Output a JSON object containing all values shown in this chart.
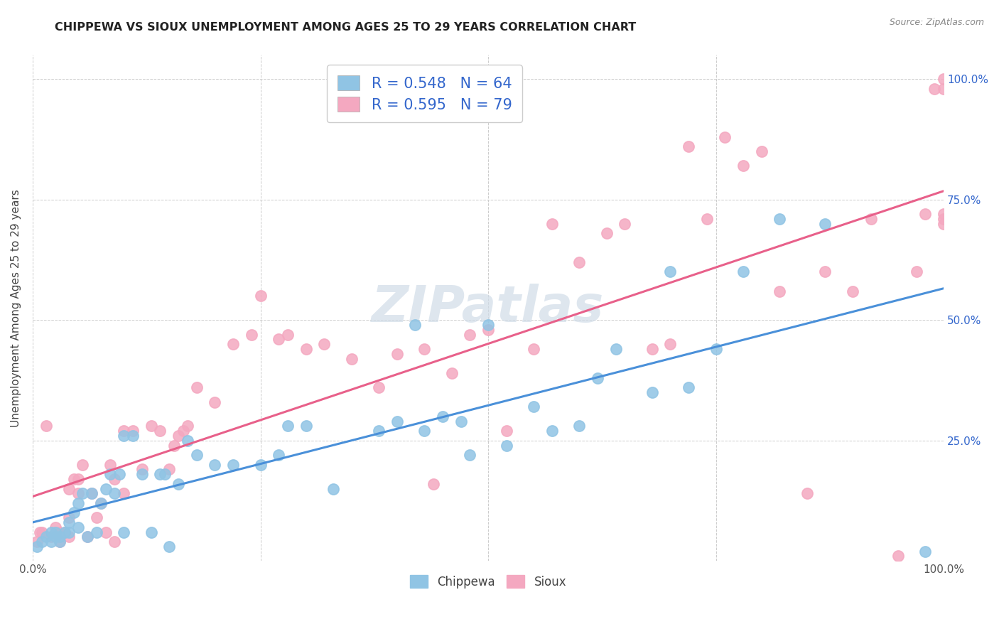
{
  "title": "CHIPPEWA VS SIOUX UNEMPLOYMENT AMONG AGES 25 TO 29 YEARS CORRELATION CHART",
  "source": "Source: ZipAtlas.com",
  "ylabel": "Unemployment Among Ages 25 to 29 years",
  "chippewa_color": "#90c4e4",
  "sioux_color": "#f4a8c0",
  "chippewa_line_color": "#4a90d9",
  "sioux_line_color": "#e8608a",
  "chippewa_R": 0.548,
  "chippewa_N": 64,
  "sioux_R": 0.595,
  "sioux_N": 79,
  "legend_text_color": "#3366cc",
  "watermark_color": "#d0dce8",
  "chippewa_line_intercept": 0.02,
  "chippewa_line_slope": 0.4,
  "sioux_line_intercept": 0.04,
  "sioux_line_slope": 0.58,
  "chippewa_scatter_x": [
    0.005,
    0.01,
    0.015,
    0.02,
    0.02,
    0.025,
    0.025,
    0.03,
    0.03,
    0.035,
    0.04,
    0.04,
    0.045,
    0.05,
    0.05,
    0.055,
    0.06,
    0.065,
    0.07,
    0.075,
    0.08,
    0.085,
    0.09,
    0.095,
    0.1,
    0.1,
    0.11,
    0.12,
    0.13,
    0.14,
    0.145,
    0.15,
    0.16,
    0.17,
    0.18,
    0.2,
    0.22,
    0.25,
    0.27,
    0.28,
    0.3,
    0.33,
    0.38,
    0.4,
    0.42,
    0.43,
    0.45,
    0.47,
    0.48,
    0.5,
    0.52,
    0.55,
    0.57,
    0.6,
    0.62,
    0.64,
    0.68,
    0.7,
    0.72,
    0.75,
    0.78,
    0.82,
    0.87,
    0.98
  ],
  "chippewa_scatter_y": [
    0.03,
    0.04,
    0.05,
    0.04,
    0.06,
    0.05,
    0.06,
    0.04,
    0.05,
    0.06,
    0.06,
    0.08,
    0.1,
    0.07,
    0.12,
    0.14,
    0.05,
    0.14,
    0.06,
    0.12,
    0.15,
    0.18,
    0.14,
    0.18,
    0.06,
    0.26,
    0.26,
    0.18,
    0.06,
    0.18,
    0.18,
    0.03,
    0.16,
    0.25,
    0.22,
    0.2,
    0.2,
    0.2,
    0.22,
    0.28,
    0.28,
    0.15,
    0.27,
    0.29,
    0.49,
    0.27,
    0.3,
    0.29,
    0.22,
    0.49,
    0.24,
    0.32,
    0.27,
    0.28,
    0.38,
    0.44,
    0.35,
    0.6,
    0.36,
    0.44,
    0.6,
    0.71,
    0.7,
    0.02
  ],
  "sioux_scatter_x": [
    0.005,
    0.008,
    0.01,
    0.015,
    0.02,
    0.025,
    0.03,
    0.03,
    0.035,
    0.04,
    0.04,
    0.04,
    0.045,
    0.05,
    0.05,
    0.055,
    0.06,
    0.065,
    0.07,
    0.075,
    0.08,
    0.085,
    0.09,
    0.09,
    0.1,
    0.1,
    0.11,
    0.12,
    0.13,
    0.14,
    0.15,
    0.155,
    0.16,
    0.165,
    0.17,
    0.18,
    0.2,
    0.22,
    0.24,
    0.25,
    0.27,
    0.28,
    0.3,
    0.32,
    0.35,
    0.38,
    0.4,
    0.43,
    0.44,
    0.46,
    0.48,
    0.5,
    0.52,
    0.55,
    0.57,
    0.6,
    0.63,
    0.65,
    0.68,
    0.7,
    0.72,
    0.74,
    0.76,
    0.78,
    0.8,
    0.82,
    0.85,
    0.87,
    0.9,
    0.92,
    0.95,
    0.97,
    0.98,
    0.99,
    1.0,
    1.0,
    1.0,
    1.0,
    1.0
  ],
  "sioux_scatter_y": [
    0.04,
    0.06,
    0.06,
    0.28,
    0.05,
    0.07,
    0.04,
    0.06,
    0.06,
    0.05,
    0.09,
    0.15,
    0.17,
    0.14,
    0.17,
    0.2,
    0.05,
    0.14,
    0.09,
    0.12,
    0.06,
    0.2,
    0.04,
    0.17,
    0.14,
    0.27,
    0.27,
    0.19,
    0.28,
    0.27,
    0.19,
    0.24,
    0.26,
    0.27,
    0.28,
    0.36,
    0.33,
    0.45,
    0.47,
    0.55,
    0.46,
    0.47,
    0.44,
    0.45,
    0.42,
    0.36,
    0.43,
    0.44,
    0.16,
    0.39,
    0.47,
    0.48,
    0.27,
    0.44,
    0.7,
    0.62,
    0.68,
    0.7,
    0.44,
    0.45,
    0.86,
    0.71,
    0.88,
    0.82,
    0.85,
    0.56,
    0.14,
    0.6,
    0.56,
    0.71,
    0.01,
    0.6,
    0.72,
    0.98,
    0.71,
    0.72,
    1.0,
    0.98,
    0.7
  ]
}
